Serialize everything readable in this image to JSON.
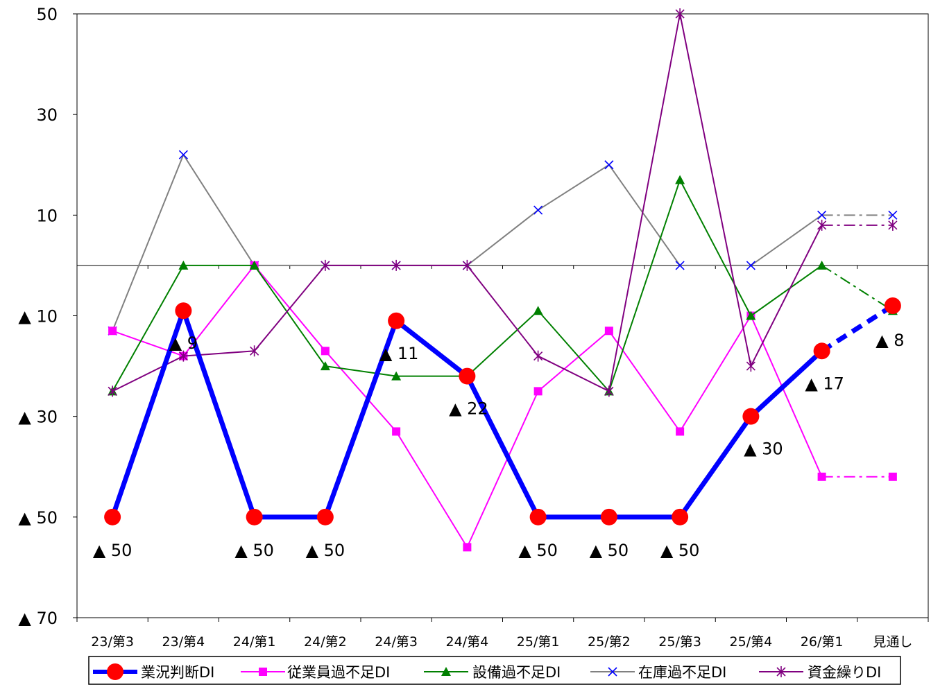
{
  "chart_data": {
    "type": "line",
    "categories": [
      "23/第3",
      "23/第4",
      "24/第1",
      "24/第2",
      "24/第3",
      "24/第4",
      "25/第1",
      "25/第2",
      "25/第3",
      "25/第4",
      "26/第1",
      "見通し"
    ],
    "ylim": [
      -70,
      50
    ],
    "yticks": [
      {
        "value": 50,
        "label": "50"
      },
      {
        "value": 30,
        "label": "30"
      },
      {
        "value": 10,
        "label": "10"
      },
      {
        "value": -10,
        "label": "▲ 10"
      },
      {
        "value": -30,
        "label": "▲ 30"
      },
      {
        "value": -50,
        "label": "▲ 50"
      },
      {
        "value": -70,
        "label": "▲ 70"
      }
    ],
    "zero_line": true,
    "grid": false,
    "legend_position": "bottom",
    "series": [
      {
        "name": "業況判断DI",
        "color": "#0000ff",
        "marker": "circle",
        "marker_color": "#ff0000",
        "values": [
          -50,
          -9,
          -50,
          -50,
          -11,
          -22,
          -50,
          -50,
          -50,
          -30,
          -17,
          -8
        ],
        "data_labels": [
          {
            "index": 0,
            "text": "▲ 50"
          },
          {
            "index": 1,
            "text": "▲ 9"
          },
          {
            "index": 2,
            "text": "▲ 50"
          },
          {
            "index": 3,
            "text": "▲ 50"
          },
          {
            "index": 4,
            "text": "▲ 11"
          },
          {
            "index": 5,
            "text": "▲ 22"
          },
          {
            "index": 6,
            "text": "▲ 50"
          },
          {
            "index": 7,
            "text": "▲ 50"
          },
          {
            "index": 8,
            "text": "▲ 50"
          },
          {
            "index": 9,
            "text": "▲ 30"
          },
          {
            "index": 10,
            "text": "▲ 17"
          },
          {
            "index": 11,
            "text": "▲ 8"
          }
        ]
      },
      {
        "name": "従業員過不足DI",
        "color": "#ff00ff",
        "marker": "square",
        "values": [
          -13,
          -18,
          0,
          -17,
          -33,
          -56,
          -25,
          -13,
          -33,
          -10,
          -42,
          -42
        ]
      },
      {
        "name": "設備過不足DI",
        "color": "#008000",
        "marker": "triangle",
        "values": [
          -25,
          0,
          0,
          -20,
          -22,
          -22,
          -9,
          -25,
          17,
          -10,
          0,
          -9
        ]
      },
      {
        "name": "在庫過不足DI",
        "color": "#808080",
        "marker": "x",
        "marker_color": "#0000ff",
        "values": [
          -13,
          22,
          0,
          0,
          0,
          0,
          11,
          20,
          0,
          0,
          10,
          10
        ]
      },
      {
        "name": "資金繰りDI",
        "color": "#800080",
        "marker": "asterisk",
        "values": [
          -25,
          -18,
          -17,
          0,
          0,
          0,
          -18,
          -25,
          50,
          -20,
          8,
          8
        ]
      }
    ]
  }
}
